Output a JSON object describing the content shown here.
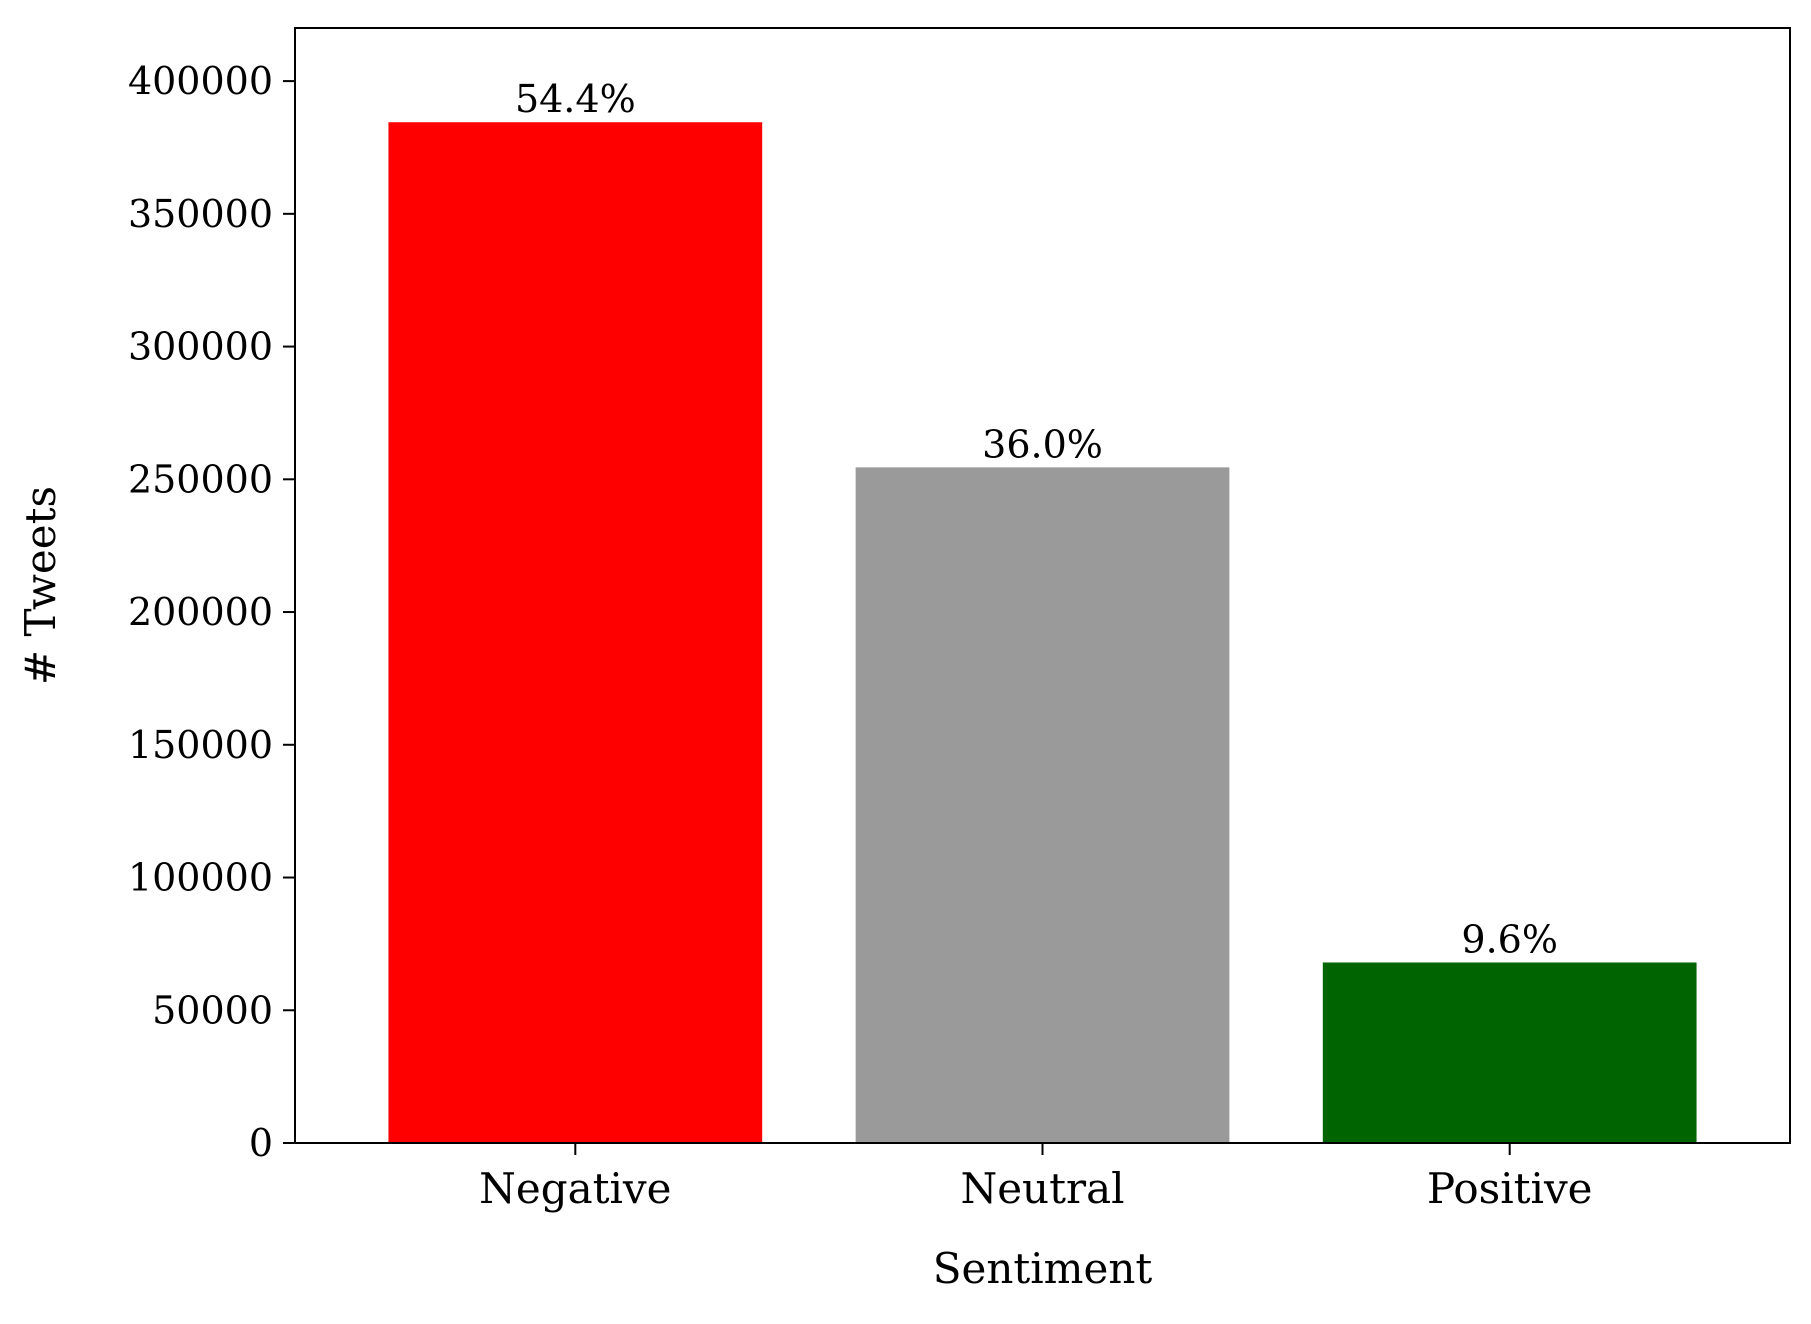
{
  "chart_data": {
    "type": "bar",
    "title": "",
    "xlabel": "Sentiment",
    "ylabel": "# Tweets",
    "categories": [
      "Negative",
      "Neutral",
      "Positive"
    ],
    "values": [
      384500,
      254500,
      68000
    ],
    "data_labels": [
      "54.4%",
      "36.0%",
      "9.6%"
    ],
    "colors": [
      "#ff0000",
      "#9a9a9a",
      "#006400"
    ],
    "ylim": [
      0,
      420000
    ],
    "yticks": [
      0,
      50000,
      100000,
      150000,
      200000,
      250000,
      300000,
      350000,
      400000
    ],
    "ytick_labels": [
      "0",
      "50000",
      "100000",
      "150000",
      "200000",
      "250000",
      "300000",
      "350000",
      "400000"
    ],
    "grid": false,
    "legend": "none"
  }
}
